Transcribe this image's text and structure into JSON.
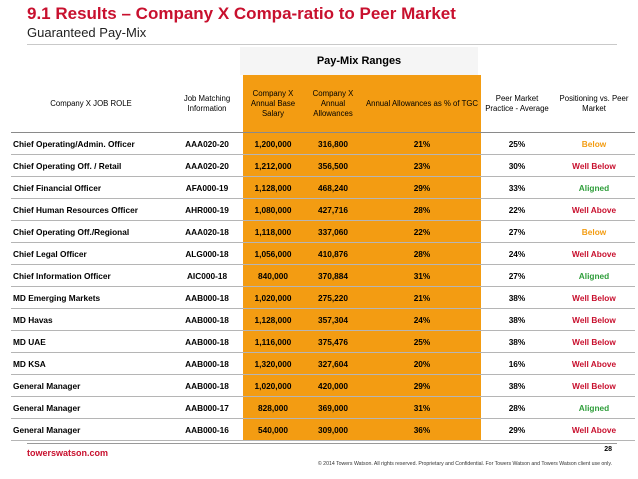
{
  "title": "9.1 Results – Company X Compa-ratio to Peer Market",
  "subtitle": "Guaranteed Pay-Mix",
  "ranges_label": "Pay-Mix Ranges",
  "columns": [
    "Company X JOB ROLE",
    "Job Matching Information",
    "Company X Annual Base Salary",
    "Company X Annual Allowances",
    "Annual Allowances as % of TGC",
    "Peer Market Practice - Average",
    "Positioning vs. Peer Market"
  ],
  "rows": [
    {
      "role": "Chief Operating/Admin. Officer",
      "code": "AAA020-20",
      "base": "1,200,000",
      "allow": "316,800",
      "pct": "21%",
      "market": "25%",
      "position": "Below",
      "status": "below"
    },
    {
      "role": "Chief Operating Off. / Retail",
      "code": "AAA020-20",
      "base": "1,212,000",
      "allow": "356,500",
      "pct": "23%",
      "market": "30%",
      "position": "Well Below",
      "status": "wellbelow"
    },
    {
      "role": "Chief Financial Officer",
      "code": "AFA000-19",
      "base": "1,128,000",
      "allow": "468,240",
      "pct": "29%",
      "market": "33%",
      "position": "Aligned",
      "status": "aligned"
    },
    {
      "role": "Chief Human Resources Officer",
      "code": "AHR000-19",
      "base": "1,080,000",
      "allow": "427,716",
      "pct": "28%",
      "market": "22%",
      "position": "Well Above",
      "status": "wellabove"
    },
    {
      "role": "Chief Operating Off./Regional",
      "code": "AAA020-18",
      "base": "1,118,000",
      "allow": "337,060",
      "pct": "22%",
      "market": "27%",
      "position": "Below",
      "status": "below"
    },
    {
      "role": "Chief Legal Officer",
      "code": "ALG000-18",
      "base": "1,056,000",
      "allow": "410,876",
      "pct": "28%",
      "market": "24%",
      "position": "Well Above",
      "status": "wellabove"
    },
    {
      "role": "Chief Information Officer",
      "code": "AIC000-18",
      "base": "840,000",
      "allow": "370,884",
      "pct": "31%",
      "market": "27%",
      "position": "Aligned",
      "status": "aligned"
    },
    {
      "role": "MD Emerging Markets",
      "code": "AAB000-18",
      "base": "1,020,000",
      "allow": "275,220",
      "pct": "21%",
      "market": "38%",
      "position": "Well Below",
      "status": "wellbelow"
    },
    {
      "role": "MD Havas",
      "code": "AAB000-18",
      "base": "1,128,000",
      "allow": "357,304",
      "pct": "24%",
      "market": "38%",
      "position": "Well Below",
      "status": "wellbelow"
    },
    {
      "role": "MD UAE",
      "code": "AAB000-18",
      "base": "1,116,000",
      "allow": "375,476",
      "pct": "25%",
      "market": "38%",
      "position": "Well Below",
      "status": "wellbelow"
    },
    {
      "role": "MD KSA",
      "code": "AAB000-18",
      "base": "1,320,000",
      "allow": "327,604",
      "pct": "20%",
      "market": "16%",
      "position": "Well Above",
      "status": "wellabove"
    },
    {
      "role": "General Manager",
      "code": "AAB000-18",
      "base": "1,020,000",
      "allow": "420,000",
      "pct": "29%",
      "market": "38%",
      "position": "Well Below",
      "status": "wellbelow"
    },
    {
      "role": "General Manager",
      "code": "AAB000-17",
      "base": "828,000",
      "allow": "369,000",
      "pct": "31%",
      "market": "28%",
      "position": "Aligned",
      "status": "aligned"
    },
    {
      "role": "General Manager",
      "code": "AAB000-16",
      "base": "540,000",
      "allow": "309,000",
      "pct": "36%",
      "market": "29%",
      "position": "Well Above",
      "status": "wellabove"
    }
  ],
  "colors": {
    "accent_red": "#c8102e",
    "orange": "#f39c12",
    "green": "#2e9e3a"
  },
  "footer": {
    "brand": "towerswatson.com",
    "page": "28",
    "copyright": "© 2014 Towers Watson. All rights reserved. Proprietary and Confidential. For Towers Watson and Towers Watson client use only."
  }
}
